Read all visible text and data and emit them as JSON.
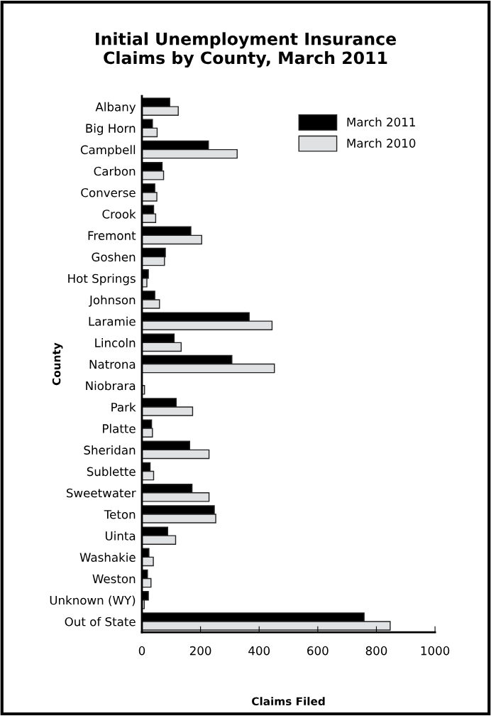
{
  "chart_data": {
    "type": "bar",
    "orientation": "horizontal",
    "title": "Initial Unemployment Insurance\nClaims by County, March 2011",
    "xlabel": "Claims Filed",
    "ylabel": "County",
    "categories": [
      "Albany",
      "Big Horn",
      "Campbell",
      "Carbon",
      "Converse",
      "Crook",
      "Fremont",
      "Goshen",
      "Hot Springs",
      "Johnson",
      "Laramie",
      "Lincoln",
      "Natrona",
      "Niobrara",
      "Park",
      "Platte",
      "Sheridan",
      "Sublette",
      "Sweetwater",
      "Teton",
      "Uinta",
      "Washakie",
      "Weston",
      "Unknown (WY)",
      "Out of State"
    ],
    "series": [
      {
        "name": "March 2011",
        "color": "#000000",
        "values": [
          95,
          36,
          227,
          69,
          44,
          40,
          167,
          80,
          22,
          44,
          366,
          110,
          307,
          null,
          117,
          33,
          163,
          28,
          171,
          247,
          88,
          24,
          19,
          22,
          758
        ]
      },
      {
        "name": "March 2010",
        "color": "#e0e1e3",
        "values": [
          124,
          52,
          325,
          74,
          51,
          47,
          204,
          77,
          17,
          60,
          444,
          134,
          452,
          9,
          173,
          36,
          229,
          40,
          229,
          252,
          115,
          39,
          31,
          8,
          847
        ]
      }
    ],
    "xlim": [
      0,
      1000
    ],
    "xticks": [
      0,
      200,
      400,
      600,
      800,
      1000
    ],
    "grid": false,
    "legend": "top right"
  }
}
